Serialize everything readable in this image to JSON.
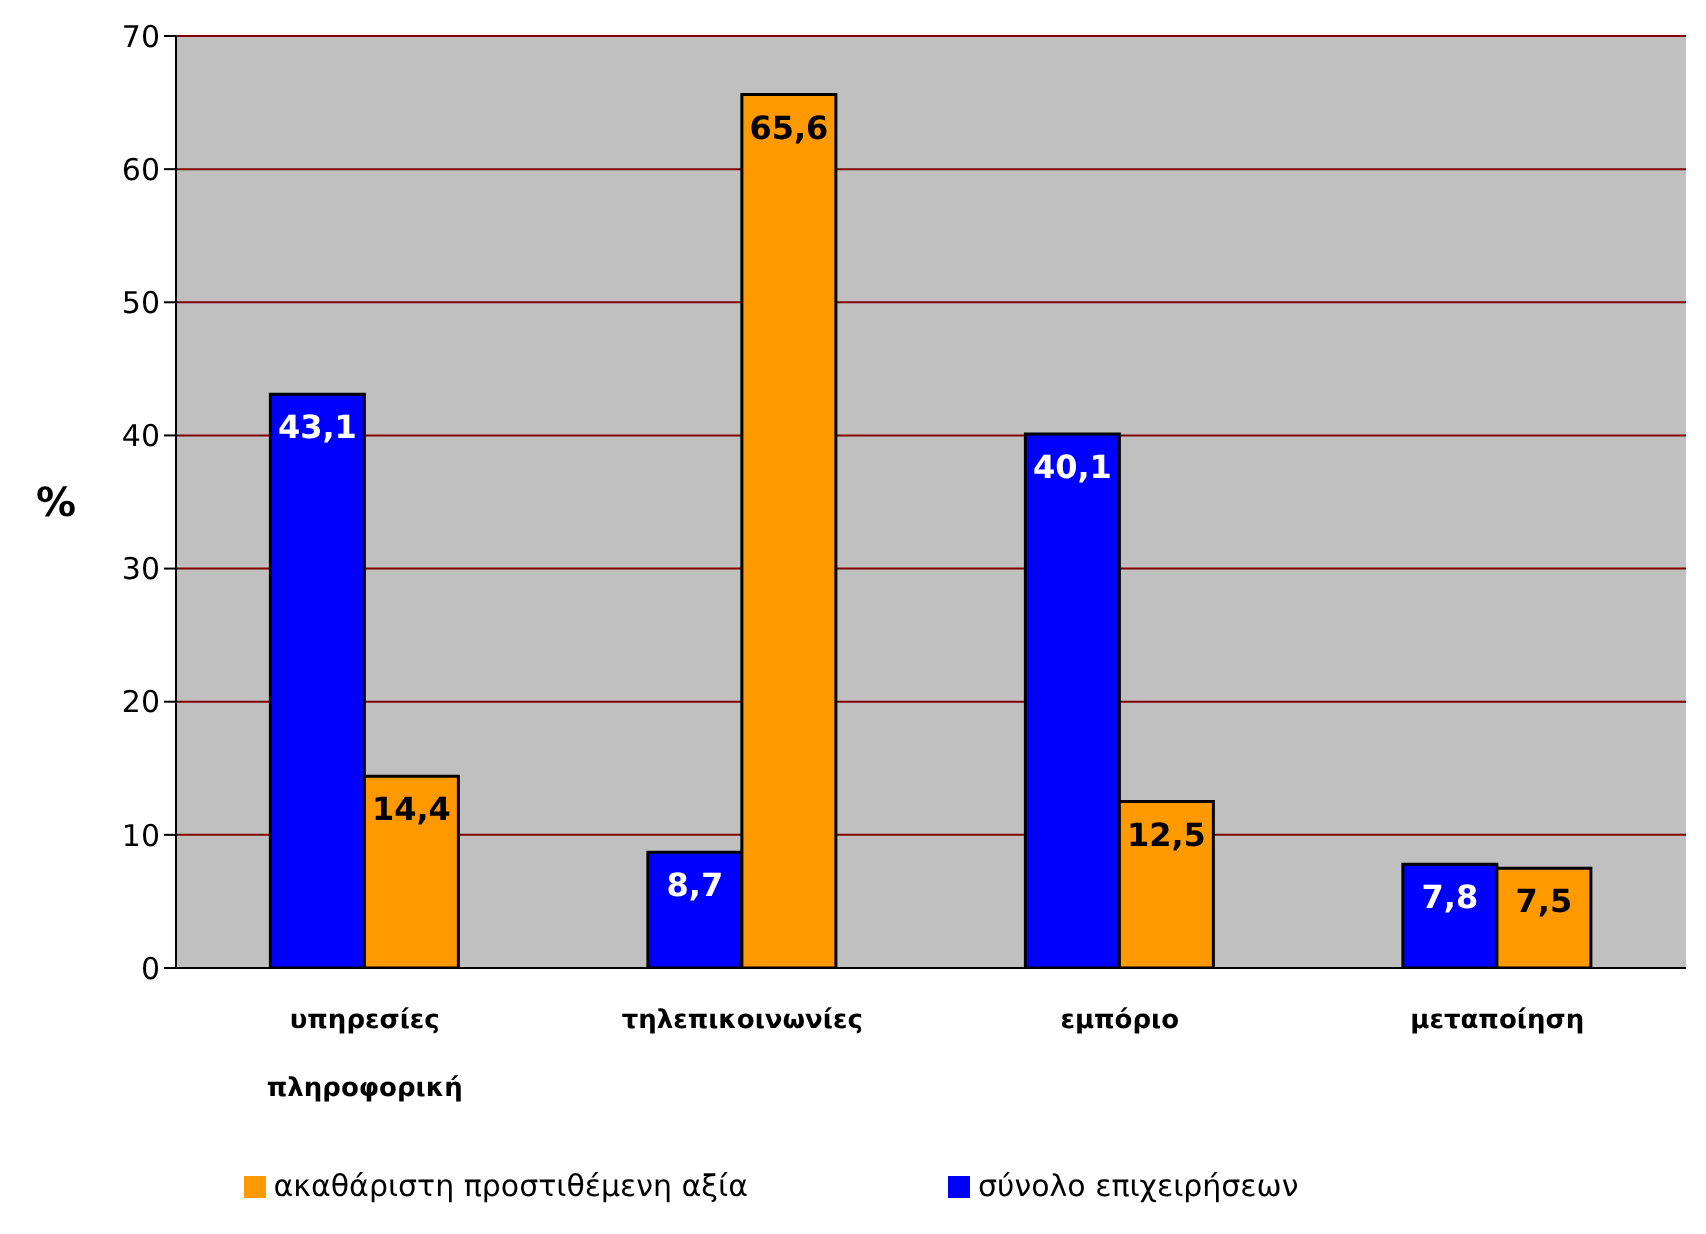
{
  "chart_data": {
    "type": "bar",
    "ylabel": "%",
    "categories": [
      "υπηρεσίες πληροφορική",
      "τηλεπικοινωνίες",
      "εμπόριο",
      "μεταποίηση"
    ],
    "series": [
      {
        "name": "σύνολο επιχειρήσεων",
        "color": "#0000ff",
        "values": [
          43.1,
          8.7,
          40.1,
          7.8
        ],
        "value_labels": [
          "43,1",
          "8,7",
          "40,1",
          "7,8"
        ]
      },
      {
        "name": "ακαθάριστη προστιθέμενη αξία",
        "color": "#ff9900",
        "values": [
          14.4,
          65.6,
          12.5,
          7.5
        ],
        "value_labels": [
          "14,4",
          "65,6",
          "12,5",
          "7,5"
        ]
      }
    ],
    "ylim": [
      0,
      70
    ],
    "yticks": [
      0,
      10,
      20,
      30,
      40,
      50,
      60,
      70
    ],
    "grid": "y",
    "legend": "bottom"
  }
}
